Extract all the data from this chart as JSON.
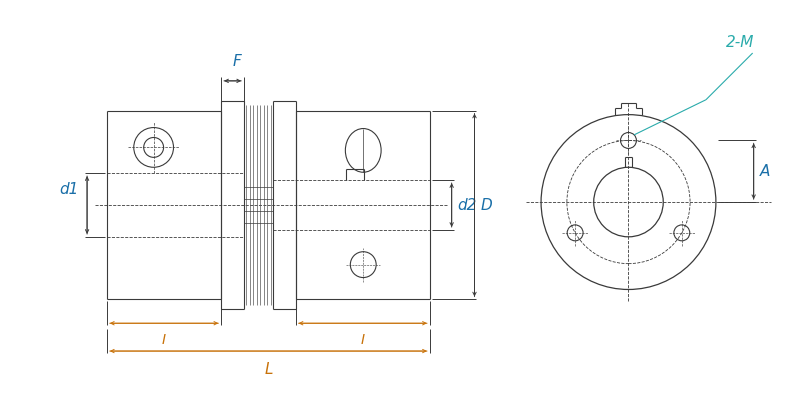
{
  "bg_color": "#ffffff",
  "line_color": "#3a3a3a",
  "dim_color_blue": "#1a6fa8",
  "dim_color_orange": "#c8720a",
  "dim_color_cyan": "#2aabab",
  "label_F": "F",
  "label_d1": "d1",
  "label_d2": "d2",
  "label_D": "D",
  "label_L": "L",
  "label_I": "I",
  "label_A": "A",
  "label_2M": "2-M",
  "font_size_label": 11,
  "font_size_dim": 10
}
